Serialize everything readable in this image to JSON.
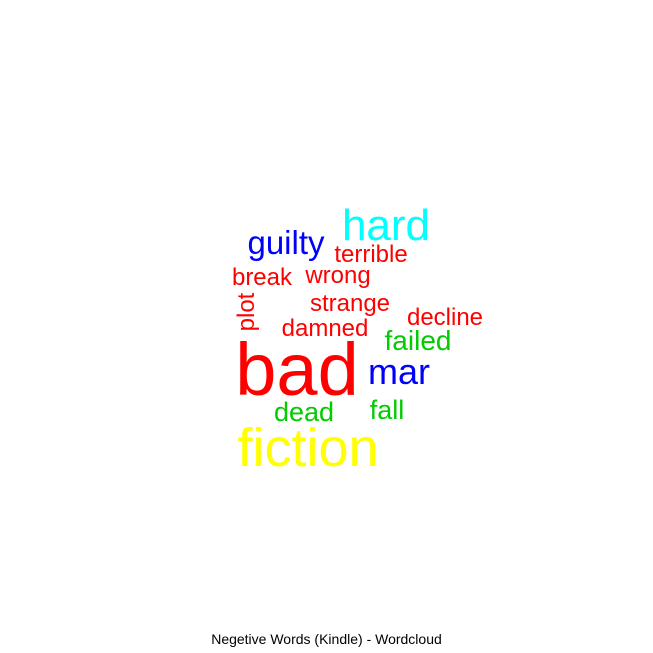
{
  "chart_data": {
    "type": "wordcloud",
    "title": "Negetive Words (Kindle) - Wordcloud",
    "words": [
      {
        "text": "bad",
        "size_rank": 1,
        "color": "#ff0000",
        "rotated": false
      },
      {
        "text": "fiction",
        "size_rank": 2,
        "color": "#ffff00",
        "rotated": false
      },
      {
        "text": "hard",
        "size_rank": 3,
        "color": "#00ffff",
        "rotated": false
      },
      {
        "text": "mar",
        "size_rank": 4,
        "color": "#0000ff",
        "rotated": false
      },
      {
        "text": "guilty",
        "size_rank": 5,
        "color": "#0000ff",
        "rotated": false
      },
      {
        "text": "failed",
        "size_rank": 6,
        "color": "#00cc00",
        "rotated": false
      },
      {
        "text": "dead",
        "size_rank": 6,
        "color": "#00cc00",
        "rotated": false
      },
      {
        "text": "fall",
        "size_rank": 6,
        "color": "#00cc00",
        "rotated": false
      },
      {
        "text": "terrible",
        "size_rank": 7,
        "color": "#ff0000",
        "rotated": false
      },
      {
        "text": "break",
        "size_rank": 7,
        "color": "#ff0000",
        "rotated": false
      },
      {
        "text": "wrong",
        "size_rank": 7,
        "color": "#ff0000",
        "rotated": false
      },
      {
        "text": "strange",
        "size_rank": 7,
        "color": "#ff0000",
        "rotated": false
      },
      {
        "text": "decline",
        "size_rank": 7,
        "color": "#ff0000",
        "rotated": false
      },
      {
        "text": "damned",
        "size_rank": 7,
        "color": "#ff0000",
        "rotated": false
      },
      {
        "text": "plot",
        "size_rank": 7,
        "color": "#ff0000",
        "rotated": true
      }
    ]
  }
}
